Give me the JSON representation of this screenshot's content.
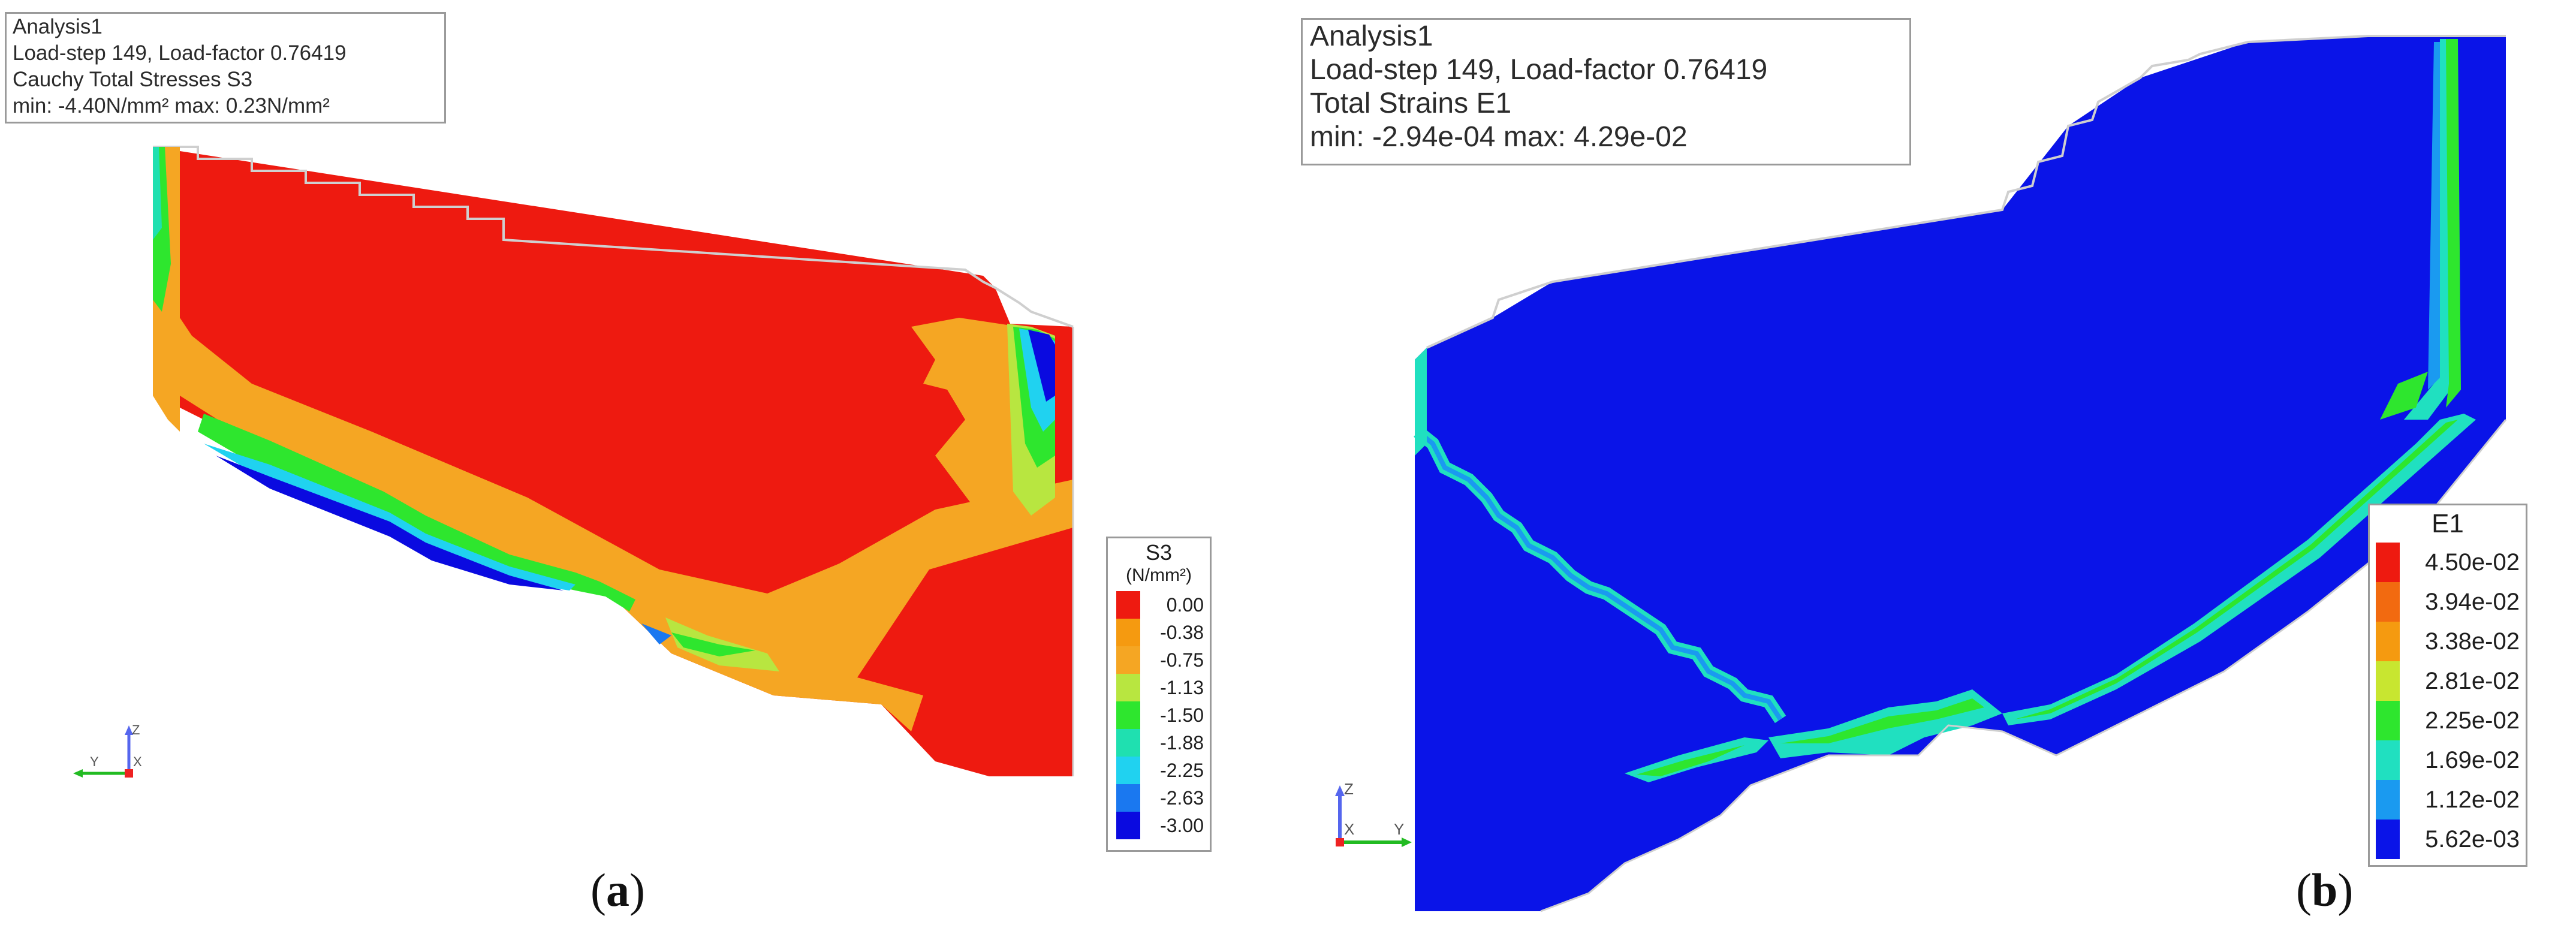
{
  "panel_a": {
    "info": {
      "line1": "Analysis1",
      "line2": "Load-step 149, Load-factor 0.76419",
      "line3": "Cauchy Total Stresses S3",
      "line4": "min: -4.40N/mm² max:  0.23N/mm²"
    },
    "legend": {
      "title": "S3",
      "unit": "(N/mm²)",
      "entries": [
        {
          "label": "0.00",
          "color": "#ee1a10"
        },
        {
          "label": "-0.38",
          "color": "#f59a10"
        },
        {
          "label": "-0.75",
          "color": "#f5a623"
        },
        {
          "label": "-1.13",
          "color": "#b8e640"
        },
        {
          "label": "-1.50",
          "color": "#2ee62e"
        },
        {
          "label": "-1.88",
          "color": "#1fe0b0"
        },
        {
          "label": "-2.25",
          "color": "#20d2f0"
        },
        {
          "label": "-2.63",
          "color": "#1a78f0"
        },
        {
          "label": "-3.00",
          "color": "#0a0ae0"
        }
      ]
    },
    "axes": {
      "z": "Z",
      "y": "Y",
      "x": "X"
    },
    "caption": "a"
  },
  "panel_b": {
    "info": {
      "line1": "Analysis1",
      "line2": "Load-step 149, Load-factor 0.76419",
      "line3": "Total Strains E1",
      "line4": "min: -2.94e-04 max: 4.29e-02"
    },
    "legend": {
      "title": "E1",
      "entries": [
        {
          "label": "4.50e-02",
          "color": "#ee1a10"
        },
        {
          "label": "3.94e-02",
          "color": "#f26a10"
        },
        {
          "label": "3.38e-02",
          "color": "#f59a10"
        },
        {
          "label": "2.81e-02",
          "color": "#c8e630"
        },
        {
          "label": "2.25e-02",
          "color": "#2ee62e"
        },
        {
          "label": "1.69e-02",
          "color": "#20e0c0"
        },
        {
          "label": "1.12e-02",
          "color": "#1a9af0"
        },
        {
          "label": "5.62e-03",
          "color": "#0a14e8"
        }
      ]
    },
    "axes": {
      "z": "Z",
      "y": "Y",
      "x": "X"
    },
    "caption": "b"
  }
}
